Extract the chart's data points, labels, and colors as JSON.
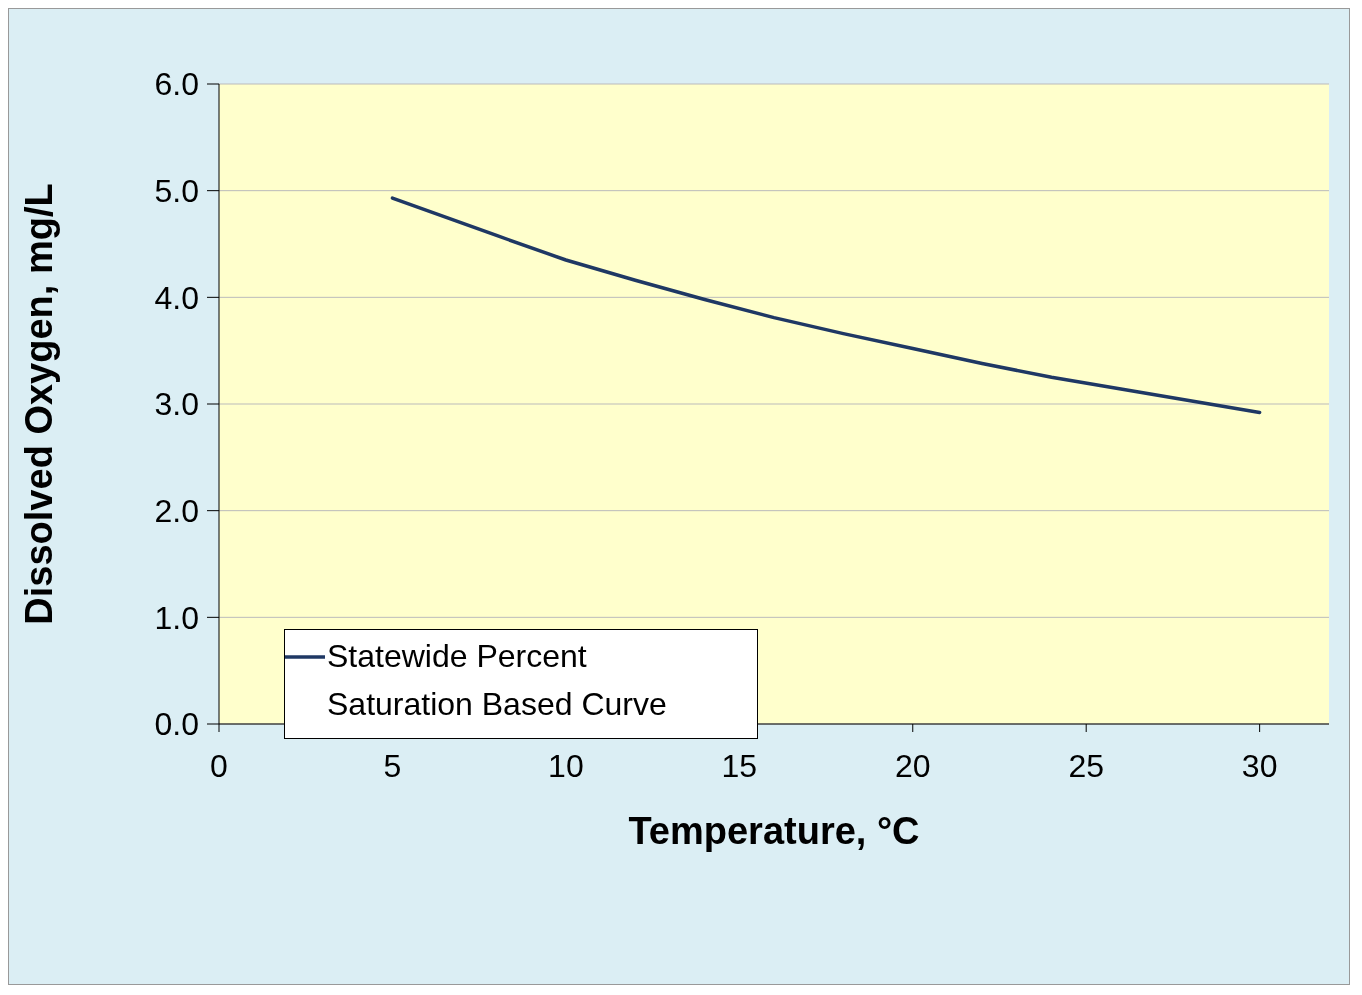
{
  "chart_data": {
    "type": "line",
    "xlabel": "Temperature, °C",
    "ylabel": "Dissolved Oxygen, mg/L",
    "xlim": [
      0,
      32
    ],
    "xticks": [
      0,
      5,
      10,
      15,
      20,
      25,
      30
    ],
    "ylim": [
      0,
      6
    ],
    "yticks": [
      {
        "value": 0,
        "label": "0.0"
      },
      {
        "value": 1,
        "label": "1.0"
      },
      {
        "value": 2,
        "label": "2.0"
      },
      {
        "value": 3,
        "label": "3.0"
      },
      {
        "value": 4,
        "label": "4.0"
      },
      {
        "value": 5,
        "label": "5.0"
      },
      {
        "value": 6,
        "label": "6.0"
      }
    ],
    "grid": "y",
    "legend": "bottom left",
    "marker": "none",
    "line_style": "solid",
    "series": [
      {
        "name": "Statewide Percent Saturation Based Curve",
        "color": "#1f3864",
        "x": [
          5,
          8,
          10,
          12,
          14,
          16,
          18,
          20,
          22,
          24,
          26,
          28,
          30
        ],
        "values": [
          4.93,
          4.58,
          4.35,
          4.16,
          3.98,
          3.81,
          3.66,
          3.52,
          3.38,
          3.25,
          3.14,
          3.03,
          2.92
        ]
      }
    ]
  }
}
